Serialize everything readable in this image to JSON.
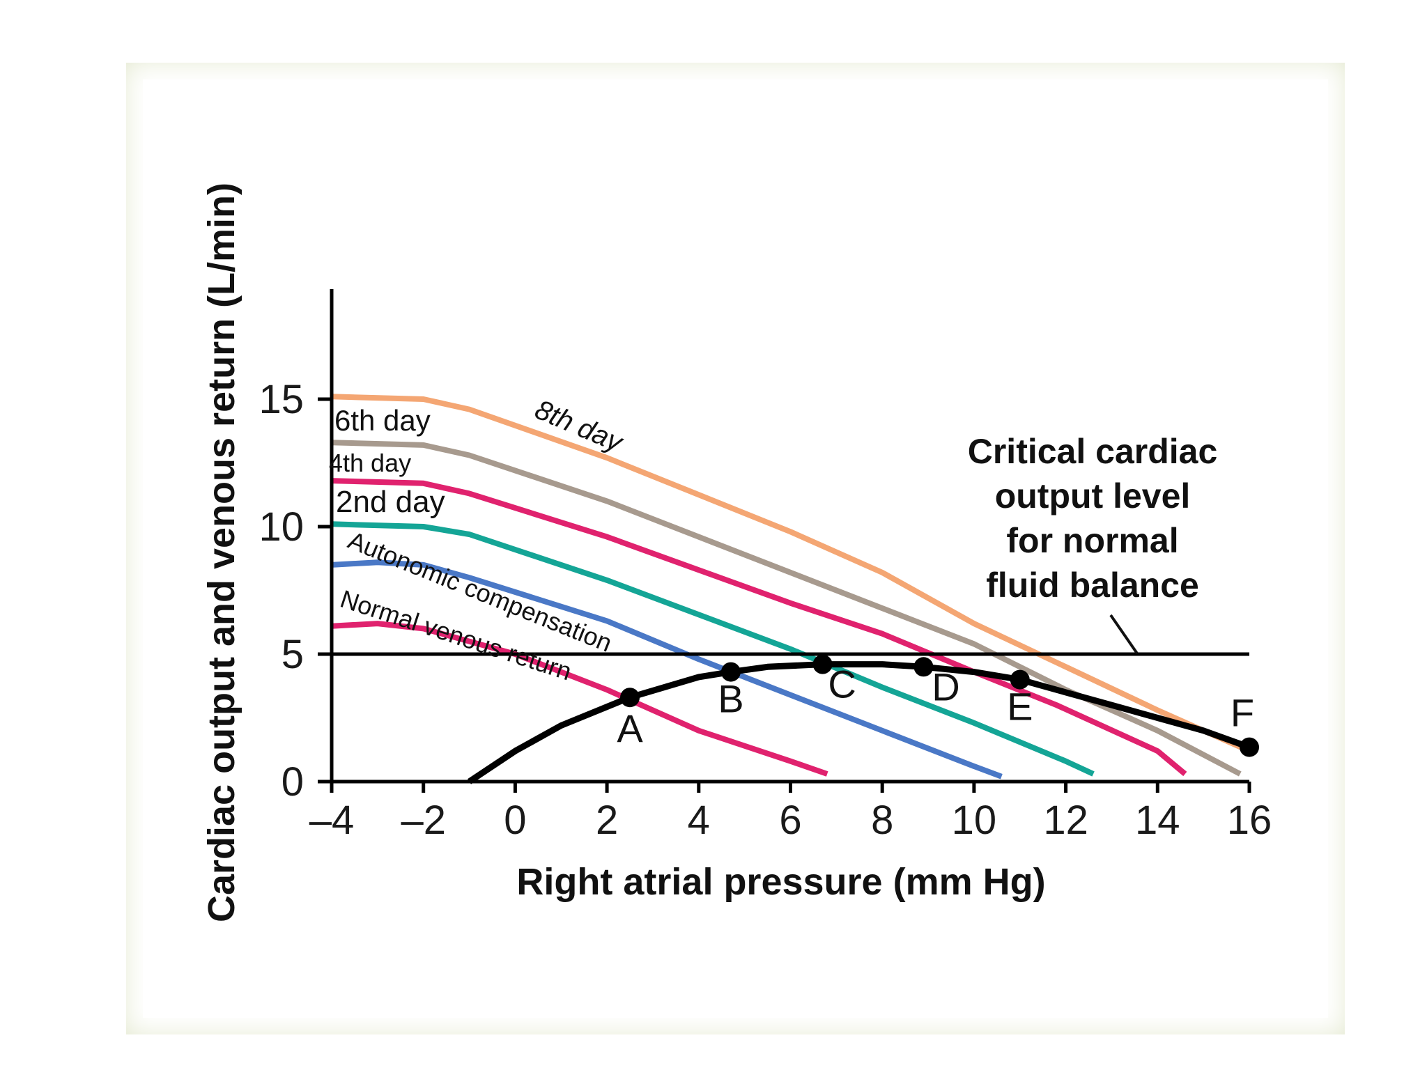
{
  "chart_data": {
    "type": "line",
    "xlabel": "Right atrial pressure (mm Hg)",
    "ylabel": "Cardiac output and venous return (L/min)",
    "xlim": [
      -4,
      16
    ],
    "ylim": [
      0,
      19
    ],
    "x_ticks": [
      -4,
      -2,
      0,
      2,
      4,
      6,
      8,
      10,
      12,
      14,
      16
    ],
    "x_tick_labels": [
      "–4",
      "–2",
      "0",
      "2",
      "4",
      "6",
      "8",
      "10",
      "12",
      "14",
      "16"
    ],
    "y_ticks": [
      0,
      5,
      10,
      15
    ],
    "y_tick_labels": [
      "0",
      "5",
      "10",
      "15"
    ],
    "venous_return_series": [
      {
        "name": "Normal venous return",
        "color": "#e0226e",
        "points": [
          [
            -4,
            6.1
          ],
          [
            -3,
            6.2
          ],
          [
            -2,
            6.0
          ],
          [
            0,
            5.0
          ],
          [
            2,
            3.6
          ],
          [
            4,
            2.0
          ],
          [
            6,
            0.8
          ],
          [
            6.8,
            0.3
          ]
        ]
      },
      {
        "name": "Autonomic compensation",
        "color": "#4a78c6",
        "points": [
          [
            -4,
            8.5
          ],
          [
            -3,
            8.6
          ],
          [
            -2,
            8.5
          ],
          [
            -1,
            8.0
          ],
          [
            2,
            6.3
          ],
          [
            4,
            4.8
          ],
          [
            6,
            3.4
          ],
          [
            8,
            2.0
          ],
          [
            10,
            0.6
          ],
          [
            10.6,
            0.2
          ]
        ]
      },
      {
        "name": "2nd day",
        "color": "#14a596",
        "points": [
          [
            -4,
            10.1
          ],
          [
            -2,
            10.0
          ],
          [
            -1,
            9.7
          ],
          [
            2,
            7.9
          ],
          [
            6,
            5.2
          ],
          [
            8,
            3.7
          ],
          [
            10,
            2.3
          ],
          [
            12,
            0.8
          ],
          [
            12.6,
            0.3
          ]
        ]
      },
      {
        "name": "4th day",
        "color": "#e0226e",
        "points": [
          [
            -4,
            11.8
          ],
          [
            -2,
            11.7
          ],
          [
            -1,
            11.3
          ],
          [
            2,
            9.6
          ],
          [
            6,
            7.0
          ],
          [
            8,
            5.8
          ],
          [
            10,
            4.3
          ],
          [
            11.8,
            3.0
          ],
          [
            14,
            1.2
          ],
          [
            14.6,
            0.3
          ]
        ]
      },
      {
        "name": "6th day",
        "color": "#a79a8e",
        "points": [
          [
            -4,
            13.3
          ],
          [
            -2,
            13.2
          ],
          [
            -1,
            12.8
          ],
          [
            2,
            11.0
          ],
          [
            6,
            8.2
          ],
          [
            8,
            6.8
          ],
          [
            10,
            5.4
          ],
          [
            12,
            3.6
          ],
          [
            14,
            2.0
          ],
          [
            15.8,
            0.3
          ]
        ]
      },
      {
        "name": "8th day",
        "color": "#f4a673",
        "points": [
          [
            -4,
            15.1
          ],
          [
            -2,
            15.0
          ],
          [
            -1,
            14.6
          ],
          [
            2,
            12.7
          ],
          [
            6,
            9.8
          ],
          [
            8,
            8.2
          ],
          [
            10,
            6.2
          ],
          [
            12,
            4.5
          ],
          [
            14,
            2.8
          ],
          [
            16,
            1.2
          ]
        ]
      }
    ],
    "cardiac_output_curve": {
      "color": "#000000",
      "points": [
        [
          -1,
          0.0
        ],
        [
          0,
          1.2
        ],
        [
          1,
          2.2
        ],
        [
          2.5,
          3.3
        ],
        [
          4,
          4.1
        ],
        [
          4.7,
          4.3
        ],
        [
          5.5,
          4.5
        ],
        [
          6.7,
          4.6
        ],
        [
          8,
          4.6
        ],
        [
          8.9,
          4.5
        ],
        [
          10,
          4.3
        ],
        [
          11,
          4.0
        ],
        [
          12,
          3.5
        ],
        [
          13,
          3.0
        ],
        [
          14,
          2.5
        ],
        [
          15,
          2.0
        ],
        [
          16,
          1.35
        ]
      ]
    },
    "equilibrium_points": [
      {
        "label": "A",
        "x": 2.5,
        "y": 3.3
      },
      {
        "label": "B",
        "x": 4.7,
        "y": 4.3
      },
      {
        "label": "C",
        "x": 6.7,
        "y": 4.6
      },
      {
        "label": "D",
        "x": 8.9,
        "y": 4.5
      },
      {
        "label": "E",
        "x": 11.0,
        "y": 4.0
      },
      {
        "label": "F",
        "x": 16.0,
        "y": 1.35
      }
    ],
    "reference_line": {
      "y": 5
    },
    "critical_annotation": [
      "Critical cardiac",
      "output level",
      "for normal",
      "fluid balance"
    ]
  }
}
